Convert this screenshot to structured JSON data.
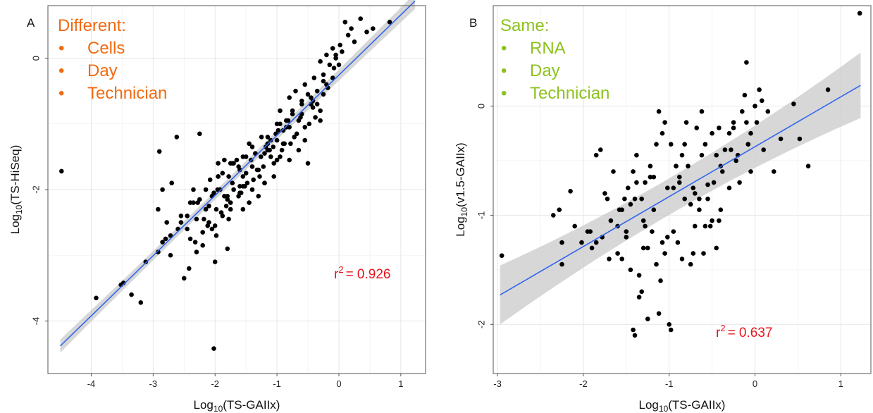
{
  "chart_data": [
    {
      "type": "scatter",
      "panel": "A",
      "xlabel": {
        "prefix": "Log",
        "sub": "10",
        "suffix": "(TS-GAIIx)"
      },
      "ylabel": {
        "prefix": "Log",
        "sub": "10",
        "suffix": "(TS-HiSeq)"
      },
      "xlim": [
        -4.7,
        1.4
      ],
      "ylim": [
        -4.8,
        0.8
      ],
      "xticks": [
        -4,
        -3,
        -2,
        -1,
        0,
        1
      ],
      "yticks": [
        -4,
        -2,
        0
      ],
      "grid": true,
      "annotation": {
        "title": "Different:",
        "items": [
          "Cells",
          "Day",
          "Technician"
        ],
        "color": "#f26a10",
        "placement": "top-left"
      },
      "r2": {
        "label": "r",
        "sup": "2",
        "value": "= 0.926",
        "color": "#e8141c"
      },
      "fit": {
        "x": [
          -4.5,
          1.23
        ],
        "y": [
          -4.38,
          0.87
        ],
        "band_edge": [
          0.1,
          0.02,
          0.12
        ],
        "color": "#3366ee"
      },
      "points": {
        "x": [
          -4.48,
          1.22,
          -3.92,
          -3.52,
          -3.48,
          -3.35,
          -3.2,
          -3.12,
          -2.92,
          -2.9,
          -2.85,
          -2.8,
          -2.78,
          -2.72,
          -2.62,
          -2.5,
          -2.45,
          -2.42,
          -2.35,
          -2.3,
          -2.25,
          -2.2,
          -2.15,
          -2.1,
          -2.08,
          -2.05,
          -2.02,
          -1.98,
          -1.95,
          -1.92,
          -1.88,
          -1.85,
          -1.8,
          -1.78,
          -1.75,
          -1.72,
          -1.7,
          -1.65,
          -1.62,
          -1.6,
          -1.55,
          -1.5,
          -1.48,
          -1.45,
          -1.4,
          -1.35,
          -1.3,
          -1.25,
          -1.2,
          -1.15,
          -1.1,
          -1.05,
          -1.0,
          -0.95,
          -0.9,
          -0.85,
          -0.8,
          -0.75,
          -0.7,
          -0.65,
          -0.6,
          -0.55,
          -0.5,
          -0.45,
          -0.4,
          -0.35,
          -0.3,
          -0.25,
          -0.2,
          -0.15,
          -0.1,
          -0.05,
          0.02,
          0.1,
          0.2,
          0.35,
          0.45,
          0.82,
          -2.92,
          -2.6,
          -2.32,
          -2.0,
          -1.8,
          -1.45,
          -1.2,
          -0.95,
          -0.72,
          -0.48,
          -0.35,
          -0.2,
          -0.1,
          -0.05,
          0.05,
          0.15,
          -2.7,
          -2.4,
          -2.18,
          -1.98,
          -1.75,
          -1.55,
          -1.32,
          -1.1,
          -0.88,
          -0.62,
          -0.42,
          -0.25,
          -0.08,
          -2.2,
          -1.9,
          -1.58,
          -1.28,
          -1.0,
          -0.78,
          -0.55,
          -0.3,
          -2.12,
          -1.82,
          -1.52,
          -1.22,
          -0.92,
          -0.68,
          -0.38,
          -2.72,
          -2.45,
          -2.25,
          -1.95,
          -1.7,
          -1.4,
          -1.15,
          -0.98,
          -0.82,
          -0.6,
          -0.45,
          -2.85,
          -2.55,
          -2.28,
          -2.02,
          -1.88,
          -1.62,
          -1.42,
          -1.18,
          -1.02,
          -0.85,
          -1.96,
          -1.72,
          -1.5,
          -1.26,
          -1.06,
          -2.4,
          -2.1,
          -1.85,
          -1.6,
          -1.38,
          -1.12,
          -0.9,
          -0.65,
          -0.42,
          -0.18,
          -2.3,
          -2.05,
          -1.78,
          -1.55,
          -1.3,
          -1.05,
          -0.8,
          -0.55,
          -0.3,
          -2.55,
          -2.35,
          -2.15,
          -1.95,
          -1.75,
          -1.55,
          -1.35,
          -1.15,
          -0.95,
          -0.75,
          -0.5,
          -0.25,
          0.0,
          0.25,
          0.55,
          -2.0,
          -1.8,
          -1.6,
          -1.4,
          -1.2,
          -1.0,
          -0.8,
          -0.6
        ],
        "y": [
          -1.72,
          1.0,
          -3.65,
          -3.45,
          -3.42,
          -3.6,
          -3.72,
          -3.1,
          -2.95,
          -1.42,
          -2.0,
          -2.75,
          -2.5,
          -3.0,
          -1.2,
          -3.35,
          -2.6,
          -3.2,
          -2.0,
          -2.45,
          -1.15,
          -2.85,
          -2.3,
          -2.5,
          -1.85,
          -2.1,
          -4.42,
          -2.3,
          -1.6,
          -2.0,
          -2.4,
          -1.55,
          -2.1,
          -1.8,
          -2.3,
          -1.6,
          -2.0,
          -1.55,
          -2.1,
          -1.7,
          -1.8,
          -1.5,
          -1.9,
          -1.3,
          -2.0,
          -1.45,
          -1.7,
          -1.2,
          -1.9,
          -1.4,
          -1.25,
          -1.6,
          -1.0,
          -0.8,
          -1.1,
          -0.95,
          -0.6,
          -0.85,
          -0.5,
          -1.4,
          -0.65,
          -0.4,
          -1.6,
          -0.7,
          -0.3,
          -0.5,
          -0.05,
          -0.25,
          0.05,
          -0.1,
          0.15,
          0.05,
          0.2,
          0.55,
          0.45,
          0.6,
          0.4,
          0.55,
          -2.3,
          -2.6,
          -2.8,
          -3.1,
          -2.9,
          -2.2,
          -1.9,
          -1.5,
          -1.2,
          -1.0,
          -0.7,
          -0.4,
          -0.3,
          0.0,
          0.1,
          0.35,
          -1.9,
          -2.2,
          -2.45,
          -2.7,
          -2.2,
          -1.95,
          -1.7,
          -1.5,
          -1.3,
          -0.9,
          -0.75,
          -0.55,
          -0.15,
          -2.65,
          -2.35,
          -2.05,
          -1.8,
          -1.55,
          -1.3,
          -1.05,
          -0.8,
          -2.55,
          -2.25,
          -1.95,
          -1.65,
          -1.4,
          -1.15,
          -0.9,
          -2.7,
          -2.4,
          -2.15,
          -1.8,
          -1.6,
          -1.35,
          -1.2,
          -1.1,
          -0.95,
          -0.7,
          -0.6,
          -2.8,
          -2.5,
          -2.2,
          -2.05,
          -1.75,
          -1.65,
          -1.55,
          -1.35,
          -1.15,
          -1.05,
          -2.0,
          -1.9,
          -1.75,
          -1.5,
          -1.35,
          -2.75,
          -2.25,
          -2.1,
          -2.05,
          -1.85,
          -1.4,
          -1.3,
          -0.95,
          -0.65,
          -0.45,
          -2.95,
          -2.6,
          -2.45,
          -2.3,
          -2.1,
          -1.8,
          -1.55,
          -1.25,
          -0.95,
          -2.4,
          -2.2,
          -2.0,
          -1.8,
          -1.6,
          -1.5,
          -1.45,
          -1.3,
          -1.0,
          -0.8,
          -0.55,
          -0.35,
          -0.1,
          0.25,
          0.45,
          -2.55,
          -2.15,
          -1.95,
          -1.65,
          -1.45,
          -1.25,
          -1.05,
          -0.85
        ]
      }
    },
    {
      "type": "scatter",
      "panel": "B",
      "xlabel": {
        "prefix": "Log",
        "sub": "10",
        "suffix": "(TS-GAIIx)"
      },
      "ylabel": {
        "prefix": "Log",
        "sub": "10",
        "suffix": "(v1.5-GAIIx)"
      },
      "xlim": [
        -3.05,
        1.35
      ],
      "ylim": [
        -2.45,
        0.92
      ],
      "xticks": [
        -3,
        -2,
        -1,
        0,
        1
      ],
      "yticks": [
        -2,
        -1,
        0
      ],
      "grid": true,
      "annotation": {
        "title": "Same:",
        "items": [
          "RNA",
          "Day",
          "Technician"
        ],
        "color": "#8cc21e",
        "placement": "top-left"
      },
      "r2": {
        "label": "r",
        "sup": "2",
        "value": "= 0.637",
        "color": "#e8141c"
      },
      "fit": {
        "x": [
          -2.97,
          1.23
        ],
        "y": [
          -1.73,
          0.19
        ],
        "band_edge": [
          0.27,
          0.05,
          0.3
        ],
        "color": "#3366ee"
      },
      "points": {
        "x": [
          -2.95,
          1.22,
          -2.35,
          -2.28,
          -2.25,
          -2.1,
          -2.02,
          -1.95,
          -1.9,
          -1.85,
          -1.8,
          -1.78,
          -1.72,
          -1.7,
          -1.65,
          -1.6,
          -1.58,
          -1.55,
          -1.52,
          -1.5,
          -1.48,
          -1.45,
          -1.42,
          -1.4,
          -1.38,
          -1.35,
          -1.32,
          -1.3,
          -1.28,
          -1.25,
          -1.22,
          -1.2,
          -1.18,
          -1.15,
          -1.12,
          -1.1,
          -1.08,
          -1.05,
          -1.02,
          -1.0,
          -0.98,
          -0.95,
          -0.92,
          -0.9,
          -0.88,
          -0.85,
          -0.82,
          -0.8,
          -0.78,
          -0.75,
          -0.72,
          -0.7,
          -0.68,
          -0.65,
          -0.62,
          -0.6,
          -0.58,
          -0.55,
          -0.52,
          -0.5,
          -0.48,
          -0.45,
          -0.42,
          -0.4,
          -0.35,
          -0.3,
          -0.25,
          -0.2,
          -0.15,
          -0.1,
          -0.08,
          -0.05,
          0.0,
          0.02,
          0.05,
          0.1,
          0.15,
          0.22,
          0.3,
          0.45,
          0.52,
          0.62,
          0.85,
          -1.42,
          -1.35,
          -1.28,
          -1.22,
          -1.15,
          -1.05,
          -0.95,
          -0.85,
          -0.75,
          -0.62,
          -0.5,
          -0.38,
          -0.25,
          -0.12,
          -0.08,
          -1.6,
          -1.5,
          -1.4,
          -1.32,
          -1.25,
          -1.18,
          -1.02,
          -0.92,
          -0.82,
          -0.7,
          -0.58,
          -0.45,
          -0.3,
          -0.18,
          -0.05,
          -2.25,
          -2.15,
          -1.85,
          -1.68,
          -1.45,
          -1.38,
          -1.12,
          -0.98,
          -0.72,
          -0.55,
          -0.4,
          -0.22,
          -1.92,
          -1.75,
          -1.55,
          -1.3,
          -1.08,
          -0.88,
          -0.65,
          -0.42,
          -0.28,
          -0.1,
          0.08
        ],
        "y": [
          -1.37,
          0.85,
          -1.0,
          -0.95,
          -1.25,
          -1.1,
          -1.25,
          -1.15,
          -1.3,
          -0.45,
          -0.4,
          -1.2,
          -0.85,
          -1.4,
          -0.6,
          -1.1,
          -0.95,
          -1.4,
          -0.85,
          -1.2,
          -0.75,
          -1.5,
          -0.6,
          -2.1,
          -0.45,
          -1.75,
          -0.85,
          -1.3,
          -0.7,
          -1.95,
          -0.55,
          -1.15,
          -0.65,
          -1.45,
          -0.05,
          -1.6,
          -0.25,
          -1.35,
          -0.75,
          -2.0,
          -0.35,
          -1.15,
          -0.55,
          -1.25,
          -0.7,
          -1.4,
          -0.85,
          -0.15,
          -0.55,
          -1.45,
          -0.75,
          -1.1,
          -0.2,
          -0.95,
          -0.45,
          -1.35,
          -0.35,
          -0.85,
          -1.1,
          -0.25,
          -0.7,
          -1.3,
          -0.2,
          -0.95,
          -0.4,
          -0.75,
          -0.15,
          -0.45,
          -0.05,
          0.4,
          -0.35,
          -0.6,
          0.0,
          -0.15,
          0.15,
          -0.4,
          -0.05,
          -0.6,
          -0.3,
          0.02,
          -0.3,
          -0.55,
          0.15,
          -2.05,
          -1.55,
          -1.1,
          -0.65,
          -0.35,
          -0.15,
          -0.75,
          -0.45,
          -0.9,
          -0.05,
          -1.05,
          -0.6,
          -0.2,
          0.1,
          -0.35,
          -1.35,
          -1.15,
          -0.85,
          -1.7,
          -1.3,
          -0.95,
          -1.2,
          -0.55,
          -0.35,
          -0.8,
          -1.1,
          -0.45,
          -0.25,
          -0.7,
          -0.25,
          -1.45,
          -0.78,
          -1.25,
          -1.05,
          -0.9,
          -0.7,
          -1.9,
          -2.05,
          -1.35,
          -0.72,
          -0.55,
          -0.5,
          -1.15,
          -0.8,
          -0.95,
          -1.05,
          -1.25,
          -0.65,
          -0.85,
          -1.05,
          -0.4,
          -0.15,
          0.05
        ]
      }
    }
  ]
}
